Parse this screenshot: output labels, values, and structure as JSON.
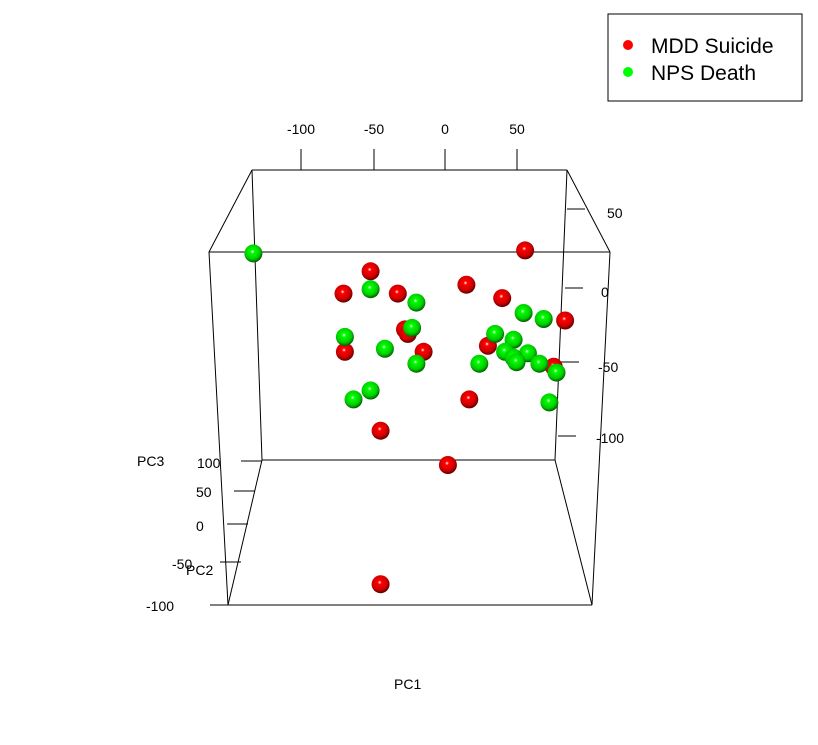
{
  "chart_data": {
    "type": "scatter3d",
    "title": "",
    "xlabel": "PC1",
    "ylabel": "PC2",
    "zlabel": "PC3",
    "x_ticks": [
      -100,
      -50,
      0,
      50
    ],
    "y_ticks": [
      50,
      0,
      -50,
      -100
    ],
    "z_ticks": [
      100,
      50,
      0,
      -50,
      -100
    ],
    "grid": false,
    "legend_position": "top-right",
    "series": [
      {
        "name": "MDD Suicide",
        "color": "#ff0000",
        "points": [
          {
            "pc1": -52,
            "pc3": 30
          },
          {
            "pc1": -71,
            "pc3": 15
          },
          {
            "pc1": -33,
            "pc3": 15
          },
          {
            "pc1": -28,
            "pc3": -9
          },
          {
            "pc1": -26,
            "pc3": -12
          },
          {
            "pc1": -70,
            "pc3": -24
          },
          {
            "pc1": -15,
            "pc3": -24
          },
          {
            "pc1": 15,
            "pc3": 21
          },
          {
            "pc1": 40,
            "pc3": 12
          },
          {
            "pc1": 56,
            "pc3": 44
          },
          {
            "pc1": 84,
            "pc3": -3
          },
          {
            "pc1": 76,
            "pc3": -34
          },
          {
            "pc1": 30,
            "pc3": -20
          },
          {
            "pc1": 17,
            "pc3": -56
          },
          {
            "pc1": -45,
            "pc3": -77
          },
          {
            "pc1": 2,
            "pc3": -100
          },
          {
            "pc1": -45,
            "pc3": -180
          }
        ]
      },
      {
        "name": "NPS Death",
        "color": "#00ff00",
        "points": [
          {
            "pc1": -134,
            "pc3": 42
          },
          {
            "pc1": -52,
            "pc3": 18
          },
          {
            "pc1": -20,
            "pc3": 9
          },
          {
            "pc1": -23,
            "pc3": -8
          },
          {
            "pc1": -70,
            "pc3": -14
          },
          {
            "pc1": -42,
            "pc3": -22
          },
          {
            "pc1": -20,
            "pc3": -32
          },
          {
            "pc1": -52,
            "pc3": -50
          },
          {
            "pc1": -64,
            "pc3": -56
          },
          {
            "pc1": 55,
            "pc3": 2
          },
          {
            "pc1": 69,
            "pc3": -2
          },
          {
            "pc1": 48,
            "pc3": -16
          },
          {
            "pc1": 35,
            "pc3": -12
          },
          {
            "pc1": 58,
            "pc3": -25
          },
          {
            "pc1": 42,
            "pc3": -24
          },
          {
            "pc1": 66,
            "pc3": -32
          },
          {
            "pc1": 48,
            "pc3": -28
          },
          {
            "pc1": 50,
            "pc3": -31
          },
          {
            "pc1": 24,
            "pc3": -32
          },
          {
            "pc1": 78,
            "pc3": -38
          },
          {
            "pc1": 73,
            "pc3": -58
          }
        ]
      }
    ]
  }
}
